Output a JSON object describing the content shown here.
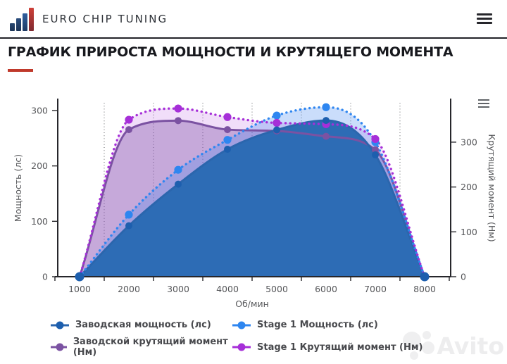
{
  "header": {
    "brand": "EURO CHIP TUNING"
  },
  "title": "ГРАФИК ПРИРОСТА МОЩНОСТИ И КРУТЯЩЕГО МОМЕНТА",
  "watermark": "Avito",
  "colors": {
    "accent_red": "#c0392b",
    "axis": "#26262b",
    "axis_text": "#56575a",
    "gridline": "#5f6164",
    "legend_text": "#48494d"
  },
  "chart_data": {
    "type": "area",
    "x": [
      1000,
      2000,
      3000,
      4000,
      5000,
      6000,
      7000,
      8000
    ],
    "xlabel": "Об/мин",
    "grid_x": [
      1500,
      2500,
      3500,
      4500,
      5500,
      6500,
      7500
    ],
    "axes": {
      "left": {
        "label": "Мощность (лс)",
        "ticks": [
          0,
          100,
          200,
          300
        ],
        "lim": [
          0,
          321
        ]
      },
      "right": {
        "label": "Крутящий момент (Нм)",
        "ticks": [
          0,
          100,
          200,
          300
        ],
        "lim": [
          0,
          397
        ]
      }
    },
    "legend_position": "bottom",
    "series": [
      {
        "name": "Заводская мощность (лс)",
        "axis": "left",
        "style": "solid",
        "color": "#2b66ad",
        "point_color": "#1d5fae",
        "fill": "#2d6cb5",
        "fill_opacity": 1,
        "values": [
          0,
          92,
          167,
          230,
          265,
          282,
          220,
          0
        ]
      },
      {
        "name": "Stage 1 Мощность (лс)",
        "axis": "left",
        "style": "dotted",
        "color": "#2f86f0",
        "point_color": "#2e86f0",
        "fill": "#3f86f2",
        "fill_opacity": 0.28,
        "values": [
          0,
          112,
          193,
          247,
          291,
          306,
          243,
          0
        ]
      },
      {
        "name": "Заводской крутящий момент (Нм)",
        "axis": "right",
        "style": "solid",
        "color": "#7b52a2",
        "point_color": "#7b52a2",
        "fill": "#8a5fb0",
        "fill_opacity": 0.42,
        "values": [
          0,
          328,
          348,
          328,
          325,
          313,
          283,
          0
        ]
      },
      {
        "name": "Stage 1 Крутящий момент (Нм)",
        "axis": "right",
        "style": "dotted",
        "color": "#a62fd8",
        "point_color": "#a62fd8",
        "fill": "#a933d8",
        "fill_opacity": 0.16,
        "values": [
          0,
          350,
          375,
          356,
          343,
          340,
          307,
          0
        ]
      }
    ]
  }
}
